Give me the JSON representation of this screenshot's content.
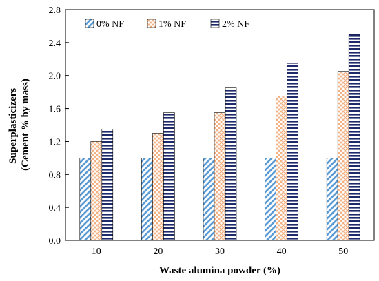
{
  "chart_data": {
    "type": "bar",
    "xlabel": "Waste alumina powder (%)",
    "ylabel_lines": [
      "Superplasticizers",
      "(Cement % by mass)"
    ],
    "categories": [
      "10",
      "20",
      "30",
      "40",
      "50"
    ],
    "ylim": [
      0,
      2.8
    ],
    "yticks": [
      "0.0",
      "0.4",
      "0.8",
      "1.2",
      "1.6",
      "2.0",
      "2.4",
      "2.8"
    ],
    "grid": false,
    "legend_position": "top-left",
    "series": [
      {
        "name": "0% NF",
        "values": [
          1.0,
          1.0,
          1.0,
          1.0,
          1.0
        ],
        "pattern": "diagonal-hatch",
        "color": "#5b9bd5"
      },
      {
        "name": "1% NF",
        "values": [
          1.2,
          1.3,
          1.55,
          1.75,
          2.05
        ],
        "pattern": "diamond-lattice",
        "color": "#f4b183"
      },
      {
        "name": "2% NF",
        "values": [
          1.35,
          1.55,
          1.85,
          2.15,
          2.5
        ],
        "pattern": "horizontal-stripes",
        "color": "#1f2a6b"
      }
    ]
  }
}
